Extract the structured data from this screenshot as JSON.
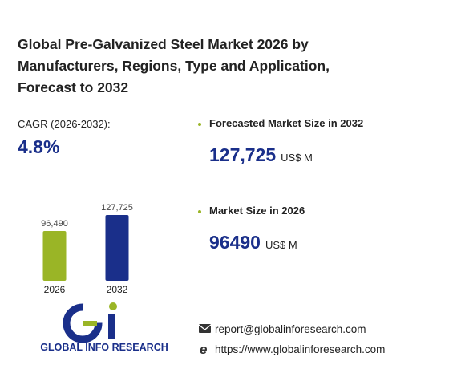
{
  "header": {
    "title": "Global Pre-Galvanized Steel Market 2026 by Manufacturers, Regions, Type and Application, Forecast to 2032"
  },
  "cagr": {
    "label": "CAGR (2026-2032):",
    "value": "4.8%"
  },
  "forecast": {
    "label": "Forecasted Market Size in 2032",
    "value": "127,725",
    "unit": "US$ M"
  },
  "market": {
    "label": "Market Size in 2026",
    "value": "96490",
    "unit": "US$ M"
  },
  "chart_data": {
    "type": "bar",
    "categories": [
      "2026",
      "2032"
    ],
    "values": [
      96490,
      127725
    ],
    "value_labels": [
      "96,490",
      "127,725"
    ],
    "colors": [
      "#9ab526",
      "#1a2f8a"
    ]
  },
  "footer": {
    "brand": "GLOBAL INFO RESEARCH",
    "email": "report@globalinforesearch.com",
    "website": "https://www.globalinforesearch.com"
  }
}
